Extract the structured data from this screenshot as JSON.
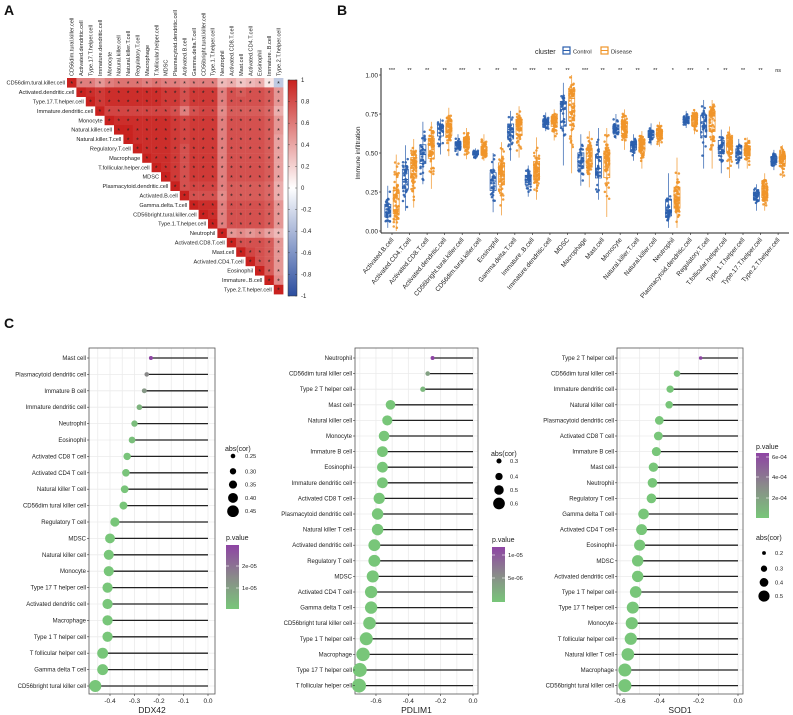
{
  "panels": {
    "a": "A",
    "b": "B",
    "c": "C"
  },
  "chart_data": [
    {
      "type": "heatmap",
      "title": "",
      "labels": [
        "CD56dim.tural.killer.cell",
        "Activated.dendritic.cell",
        "Type.17.T.helper.cell",
        "Immature.dendritic.cell",
        "Monocyte",
        "Natural.killer.cell",
        "Natural.killer.T.cell",
        "Regulatory.T.cell",
        "Macrophage",
        "T.follicular.helper.cell",
        "MDSC",
        "Plasmacytoid.dendritic.cell",
        "Activated.B.cell",
        "Gamma.delta.T.cell",
        "CD56bright.tural.killer.cell",
        "Type.1.T.helper.cell",
        "Neutrophil",
        "Activated.CD8.T.cell",
        "Mast.cell",
        "Activated.CD4.T.cell",
        "Eosinophil",
        "Immature..B.cell",
        "Type.2.T.helper.cell"
      ],
      "upper_triangle": [
        [
          1,
          0.55,
          0.55,
          0.45,
          0.55,
          0.6,
          0.6,
          0.6,
          0.55,
          0.6,
          0.55,
          0.55,
          0.5,
          0.55,
          0.55,
          0.55,
          0.3,
          0.35,
          0.25,
          0.3,
          0.35,
          0.1,
          -0.3
        ],
        [
          1,
          0.9,
          0.85,
          0.9,
          0.9,
          0.9,
          0.9,
          0.9,
          0.9,
          0.85,
          0.85,
          0.75,
          0.85,
          0.85,
          0.85,
          0.55,
          0.75,
          0.7,
          0.75,
          0.75,
          0.7,
          0.45
        ],
        [
          1,
          0.85,
          0.9,
          0.9,
          0.9,
          0.9,
          0.9,
          0.9,
          0.85,
          0.85,
          0.75,
          0.85,
          0.85,
          0.85,
          0.55,
          0.75,
          0.75,
          0.75,
          0.75,
          0.7,
          0.45
        ],
        [
          1,
          0.8,
          0.8,
          0.8,
          0.8,
          0.8,
          0.8,
          0.8,
          0.75,
          0.55,
          0.75,
          0.8,
          0.8,
          0.5,
          0.7,
          0.7,
          0.7,
          0.7,
          0.65,
          0.35
        ],
        [
          1,
          0.9,
          0.9,
          0.9,
          0.9,
          0.9,
          0.9,
          0.85,
          0.8,
          0.85,
          0.85,
          0.85,
          0.55,
          0.75,
          0.75,
          0.75,
          0.75,
          0.7,
          0.45
        ],
        [
          1,
          0.95,
          0.9,
          0.9,
          0.9,
          0.9,
          0.85,
          0.8,
          0.85,
          0.85,
          0.85,
          0.55,
          0.75,
          0.75,
          0.75,
          0.75,
          0.7,
          0.45
        ],
        [
          1,
          0.9,
          0.9,
          0.9,
          0.9,
          0.85,
          0.8,
          0.85,
          0.85,
          0.85,
          0.55,
          0.75,
          0.75,
          0.75,
          0.75,
          0.7,
          0.4
        ],
        [
          1,
          0.9,
          0.9,
          0.9,
          0.85,
          0.75,
          0.85,
          0.85,
          0.85,
          0.55,
          0.75,
          0.75,
          0.75,
          0.75,
          0.7,
          0.4
        ],
        [
          1,
          0.9,
          0.9,
          0.85,
          0.75,
          0.85,
          0.85,
          0.85,
          0.55,
          0.75,
          0.75,
          0.75,
          0.75,
          0.7,
          0.4
        ],
        [
          1,
          0.9,
          0.85,
          0.75,
          0.85,
          0.85,
          0.85,
          0.55,
          0.75,
          0.75,
          0.75,
          0.75,
          0.7,
          0.4
        ],
        [
          1,
          0.85,
          0.75,
          0.85,
          0.85,
          0.85,
          0.55,
          0.75,
          0.75,
          0.75,
          0.75,
          0.7,
          0.4
        ],
        [
          1,
          0.75,
          0.8,
          0.8,
          0.8,
          0.55,
          0.7,
          0.7,
          0.7,
          0.7,
          0.65,
          0.35
        ],
        [
          1,
          0.75,
          0.75,
          0.75,
          0.5,
          0.7,
          0.7,
          0.7,
          0.7,
          0.65,
          0.35
        ],
        [
          1,
          0.9,
          0.9,
          0.55,
          0.75,
          0.75,
          0.75,
          0.75,
          0.7,
          0.45
        ],
        [
          1,
          0.9,
          0.55,
          0.75,
          0.75,
          0.75,
          0.75,
          0.7,
          0.45
        ],
        [
          1,
          0.55,
          0.75,
          0.75,
          0.75,
          0.75,
          0.7,
          0.45
        ],
        [
          1,
          0.45,
          0.5,
          0.45,
          0.5,
          0.4,
          0.3
        ],
        [
          1,
          0.75,
          0.75,
          0.75,
          0.7,
          0.45
        ],
        [
          1,
          0.8,
          0.75,
          0.7,
          0.45
        ],
        [
          1,
          0.75,
          0.7,
          0.45
        ],
        [
          1,
          0.7,
          0.45
        ],
        [
          1,
          0.5
        ],
        [
          1
        ]
      ],
      "sig_marker": "*",
      "colorbar_range": [
        -1,
        1
      ],
      "colorbar_ticks": [
        "1",
        "0.8",
        "0.6",
        "0.4",
        "0.2",
        "0",
        "-0.2",
        "-0.4",
        "-0.6",
        "-0.8",
        "-1"
      ],
      "colors": {
        "pos": "#c9221f",
        "zero": "#ffffff",
        "neg": "#2b4d9f"
      }
    },
    {
      "type": "box",
      "ylabel": "Immune infiltration",
      "ylim": [
        0,
        1
      ],
      "yticks": [
        "0.00",
        "0.25",
        "0.50",
        "0.75",
        "1.00"
      ],
      "legend": {
        "title": "cluster",
        "placement": "top",
        "series": [
          "Control",
          "Disease"
        ]
      },
      "colors": {
        "Control": "#2b5fad",
        "Disease": "#f0952a"
      },
      "categories": [
        "Activated.B.cell",
        "Activated.CD4.T.cell",
        "Activated.CD8.T.cell",
        "Activated.dendritic.cell",
        "CD56bright.tural.killer.cell",
        "CD56dim.tural.killer.cell",
        "Eosinophil",
        "Gamma.delta.T.cell",
        "Immature..B.cell",
        "Immature.dendritic.cell",
        "MDSC",
        "Macrophage",
        "Mast.cell",
        "Monocyte",
        "Natural.killer.T.cell",
        "Natural.killer.cell",
        "Neutrophil",
        "Plasmacytoid.dendritic.cell",
        "Regulatory.T.cell",
        "T.follicular.helper.cell",
        "Type.1.T.helper.cell",
        "Type.17.T.helper.cell",
        "Type.2.T.helper.cell"
      ],
      "significance": [
        "***",
        "**",
        "**",
        "**",
        "***",
        "*",
        "**",
        "**",
        "***",
        "**",
        "**",
        "***",
        "**",
        "**",
        "**",
        "**",
        "*",
        "***",
        "*",
        "**",
        "**",
        "**",
        "ns"
      ],
      "series": [
        {
          "name": "Control",
          "min_median_max": [
            [
              0.02,
              0.12,
              0.29
            ],
            [
              0.13,
              0.33,
              0.55
            ],
            [
              0.3,
              0.49,
              0.7
            ],
            [
              0.49,
              0.66,
              0.72
            ],
            [
              0.48,
              0.55,
              0.62
            ],
            [
              0.46,
              0.5,
              0.53
            ],
            [
              0.12,
              0.32,
              0.5
            ],
            [
              0.45,
              0.65,
              0.77
            ],
            [
              0.22,
              0.33,
              0.42
            ],
            [
              0.64,
              0.7,
              0.76
            ],
            [
              0.42,
              0.78,
              0.95
            ],
            [
              0.29,
              0.45,
              0.62
            ],
            [
              0.2,
              0.4,
              0.66
            ],
            [
              0.59,
              0.65,
              0.75
            ],
            [
              0.45,
              0.55,
              0.62
            ],
            [
              0.55,
              0.62,
              0.69
            ],
            [
              0.02,
              0.13,
              0.37
            ],
            [
              0.66,
              0.71,
              0.77
            ],
            [
              0.4,
              0.7,
              0.84
            ],
            [
              0.37,
              0.55,
              0.65
            ],
            [
              0.4,
              0.5,
              0.59
            ],
            [
              0.13,
              0.23,
              0.3
            ],
            [
              0.39,
              0.46,
              0.52
            ]
          ]
        },
        {
          "name": "Disease",
          "min_median_max": [
            [
              0.0,
              0.16,
              0.49
            ],
            [
              0.15,
              0.42,
              0.59
            ],
            [
              0.27,
              0.55,
              0.7
            ],
            [
              0.48,
              0.67,
              0.79
            ],
            [
              0.46,
              0.57,
              0.66
            ],
            [
              0.45,
              0.51,
              0.62
            ],
            [
              0.1,
              0.38,
              0.57
            ],
            [
              0.47,
              0.68,
              0.8
            ],
            [
              0.2,
              0.38,
              0.6
            ],
            [
              0.58,
              0.71,
              0.78
            ],
            [
              0.37,
              0.85,
              1.0
            ],
            [
              0.28,
              0.48,
              0.64
            ],
            [
              0.09,
              0.45,
              0.66
            ],
            [
              0.52,
              0.67,
              0.78
            ],
            [
              0.4,
              0.56,
              0.64
            ],
            [
              0.54,
              0.63,
              0.7
            ],
            [
              0.02,
              0.2,
              0.47
            ],
            [
              0.62,
              0.72,
              0.78
            ],
            [
              0.4,
              0.74,
              0.84
            ],
            [
              0.34,
              0.57,
              0.67
            ],
            [
              0.4,
              0.52,
              0.6
            ],
            [
              0.13,
              0.25,
              0.37
            ],
            [
              0.34,
              0.47,
              0.55
            ]
          ]
        }
      ]
    },
    {
      "type": "lollipop",
      "xlabel": "DDX42",
      "xlim": [
        -0.47,
        0.0
      ],
      "xticks": [
        -0.4,
        -0.3,
        -0.2,
        -0.1,
        0.0
      ],
      "xtick_labels": [
        "-0.4",
        "-0.3",
        "-0.2",
        "-0.1",
        "0.0"
      ],
      "size_legend": {
        "title": "abs(cor)",
        "values": [
          "0.25",
          "0.30",
          "0.35",
          "0.40",
          "0.45"
        ]
      },
      "color_legend": {
        "title": "p.value",
        "ticks": [
          "2e-05",
          "1e-05"
        ],
        "range": [
          0,
          2.6e-05
        ]
      },
      "rows": [
        "Mast cell",
        "Plasmacytoid dendritic cell",
        "Immature  B cell",
        "Immature dendritic cell",
        "Neutrophil",
        "Eosinophil",
        "Activated CD8 T cell",
        "Activated CD4 T cell",
        "Natural killer T cell",
        "CD56dim tural killer cell",
        "Regulatory T cell",
        "MDSC",
        "Natural killer cell",
        "Monocyte",
        "Type 17 T helper cell",
        "Activated dendritic cell",
        "Macrophage",
        "Type 1 T helper cell",
        "T follicular helper cell",
        "Gamma delta T cell",
        "CD56bright tural killer cell"
      ],
      "cor": [
        -0.233,
        -0.25,
        -0.26,
        -0.28,
        -0.3,
        -0.31,
        -0.33,
        -0.335,
        -0.34,
        -0.345,
        -0.38,
        -0.4,
        -0.405,
        -0.405,
        -0.41,
        -0.41,
        -0.41,
        -0.41,
        -0.43,
        -0.43,
        -0.46
      ],
      "p_value": [
        2.6e-05,
        1.3e-05,
        1e-05,
        4e-06,
        2e-06,
        1.5e-06,
        5e-07,
        5e-07,
        4e-07,
        3e-07,
        1e-07,
        5e-08,
        4e-08,
        4e-08,
        3e-08,
        3e-08,
        3e-08,
        3e-08,
        1e-08,
        1e-08,
        1e-09
      ]
    },
    {
      "type": "lollipop",
      "xlabel": "PDLIM1",
      "xlim": [
        -0.72,
        0.0
      ],
      "xticks": [
        -0.6,
        -0.4,
        -0.2,
        0.0
      ],
      "xtick_labels": [
        "-0.6",
        "-0.4",
        "-0.2",
        "0.0"
      ],
      "size_legend": {
        "title": "abs(cor)",
        "values": [
          "0.3",
          "0.4",
          "0.5",
          "0.6"
        ]
      },
      "color_legend": {
        "title": "p.value",
        "ticks": [
          "1e-05",
          "5e-06"
        ],
        "range": [
          0,
          1.3e-05
        ]
      },
      "rows": [
        "Neutrophil",
        "CD56dim tural killer cell",
        "Type 2 T helper cell",
        "Mast cell",
        "Natural killer cell",
        "Monocyte",
        "Immature  B cell",
        "Eosinophil",
        "Immature dendritic cell",
        "Activated CD8 T cell",
        "Plasmacytoid dendritic cell",
        "Natural killer T cell",
        "Activated dendritic cell",
        "Regulatory T cell",
        "MDSC",
        "Activated CD4 T cell",
        "Gamma delta T cell",
        "CD56bright tural killer cell",
        "Type 1 T helper cell",
        "Macrophage",
        "Type 17 T helper cell",
        "T follicular helper cell"
      ],
      "cor": [
        -0.25,
        -0.28,
        -0.31,
        -0.51,
        -0.53,
        -0.55,
        -0.56,
        -0.56,
        -0.56,
        -0.58,
        -0.59,
        -0.59,
        -0.61,
        -0.61,
        -0.62,
        -0.63,
        -0.63,
        -0.64,
        -0.66,
        -0.68,
        -0.7,
        -0.705
      ],
      "p_value": [
        1.3e-05,
        4e-06,
        1.5e-06,
        1e-10,
        5e-11,
        3e-11,
        2e-11,
        2e-11,
        2e-11,
        1e-11,
        1e-11,
        1e-11,
        5e-12,
        5e-12,
        4e-12,
        3e-12,
        3e-12,
        2e-12,
        1e-12,
        5e-13,
        3e-13,
        2e-13
      ]
    },
    {
      "type": "lollipop",
      "xlabel": "SOD1",
      "xlim": [
        -0.6,
        0.0
      ],
      "xticks": [
        -0.6,
        -0.4,
        -0.2,
        0.0
      ],
      "xtick_labels": [
        "-0.6",
        "-0.4",
        "-0.2",
        "0.0"
      ],
      "size_legend": {
        "title": "abs(cor)",
        "values": [
          "0.2",
          "0.3",
          "0.4",
          "0.5"
        ]
      },
      "color_legend": {
        "title": "p.value",
        "ticks": [
          "6e-04",
          "4e-04",
          "2e-04"
        ],
        "range": [
          0,
          0.00065
        ]
      },
      "rows": [
        "Type 2 T helper cell",
        "CD56dim tural killer cell",
        "Immature dendritic cell",
        "Natural killer cell",
        "Plasmacytoid dendritic cell",
        "Activated CD8 T cell",
        "Immature  B cell",
        "Mast cell",
        "Neutrophil",
        "Regulatory T cell",
        "Gamma delta T cell",
        "Activated CD4 T cell",
        "Eosinophil",
        "MDSC",
        "Activated dendritic cell",
        "Type 1 T helper cell",
        "Type 17 T helper cell",
        "Monocyte",
        "T follicular helper cell",
        "Natural killer T cell",
        "Macrophage",
        "CD56bright tural killer cell"
      ],
      "cor": [
        -0.19,
        -0.31,
        -0.345,
        -0.35,
        -0.4,
        -0.405,
        -0.415,
        -0.43,
        -0.435,
        -0.44,
        -0.48,
        -0.49,
        -0.5,
        -0.51,
        -0.51,
        -0.52,
        -0.535,
        -0.54,
        -0.545,
        -0.56,
        -0.575,
        -0.575
      ],
      "p_value": [
        0.00065,
        1.5e-05,
        5e-06,
        4e-06,
        1e-06,
        9e-07,
        7e-07,
        5e-07,
        4e-07,
        3e-07,
        8e-08,
        6e-08,
        4e-08,
        3e-08,
        3e-08,
        2e-08,
        1e-08,
        1e-08,
        9e-09,
        5e-09,
        3e-09,
        3e-09
      ]
    }
  ]
}
